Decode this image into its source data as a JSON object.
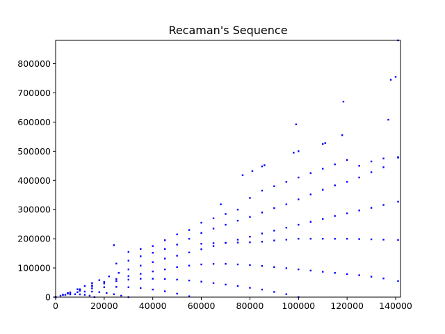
{
  "chart_data": {
    "type": "scatter",
    "title": "Recaman's Sequence",
    "xlabel": "",
    "ylabel": "",
    "xlim": [
      0,
      142000
    ],
    "ylim": [
      0,
      880000
    ],
    "xticks": [
      0,
      20000,
      40000,
      60000,
      80000,
      100000,
      120000,
      140000
    ],
    "xtick_labels": [
      "0",
      "20000",
      "40000",
      "60000",
      "80000",
      "100000",
      "120000",
      "140000"
    ],
    "yticks": [
      0,
      100000,
      200000,
      300000,
      400000,
      500000,
      600000,
      700000,
      800000
    ],
    "ytick_labels": [
      "0",
      "100000",
      "200000",
      "300000",
      "400000",
      "500000",
      "600000",
      "700000",
      "800000"
    ],
    "grid": false,
    "legend": "none",
    "marker_color": "#0000ff",
    "series": [
      {
        "description": "rising",
        "x": [
          0,
          3000,
          6000,
          9000,
          12000,
          15000,
          18000,
          22000,
          26000,
          30000,
          35000,
          40000,
          45000,
          50000,
          55000,
          60000,
          65000,
          70000,
          75000,
          80000,
          85000,
          90000,
          95000,
          100000,
          105000,
          110000,
          115000,
          120000,
          125000,
          130000,
          135000,
          141000
        ],
        "y": [
          0,
          8000,
          16000,
          27000,
          38000,
          48000,
          58000,
          71000,
          83000,
          95000,
          108000,
          120000,
          132000,
          142000,
          153000,
          164000,
          175000,
          186000,
          197000,
          207000,
          218000,
          228000,
          238000,
          248000,
          258000,
          268000,
          278000,
          287000,
          297000,
          306000,
          316000,
          327000
        ]
      },
      {
        "description": "rising-steeper",
        "x": [
          25000,
          30000,
          35000,
          40000,
          45000,
          50000,
          55000,
          60000,
          65000,
          70000,
          75000,
          80000,
          85000,
          90000,
          95000,
          100000,
          105000,
          110000,
          115000,
          120000,
          125000,
          130000,
          135000,
          141000
        ],
        "y": [
          115000,
          125000,
          140000,
          152000,
          165000,
          180000,
          200000,
          220000,
          235000,
          248000,
          262000,
          275000,
          290000,
          305000,
          318000,
          335000,
          352000,
          368000,
          383000,
          395000,
          410000,
          428000,
          445000,
          478000
        ]
      },
      {
        "description": "upper-scattered",
        "x": [
          30000,
          35000,
          40000,
          45000,
          50000,
          55000,
          60000,
          65000,
          70000,
          75000,
          80000,
          85000,
          90000,
          95000,
          100000,
          105000,
          110000,
          115000,
          120000,
          125000,
          130000,
          135000,
          141000
        ],
        "y": [
          155000,
          165000,
          175000,
          195000,
          215000,
          230000,
          255000,
          270000,
          285000,
          300000,
          340000,
          365000,
          380000,
          395000,
          410000,
          425000,
          440000,
          455000,
          470000,
          450000,
          465000,
          475000,
          480000
        ]
      },
      {
        "description": "top-outliers",
        "x": [
          24000,
          68000,
          77000,
          81000,
          85000,
          86000,
          98000,
          99000,
          100000,
          110000,
          111000,
          118000,
          118500,
          137000,
          138000,
          140000,
          141000
        ],
        "y": [
          178000,
          318000,
          418000,
          432000,
          448000,
          452000,
          495000,
          592000,
          500000,
          525000,
          528000,
          555000,
          670000,
          608000,
          745000,
          755000,
          880000
        ]
      },
      {
        "description": "flat-arc",
        "x": [
          60000,
          65000,
          70000,
          75000,
          80000,
          85000,
          90000,
          95000,
          100000,
          105000,
          110000,
          115000,
          120000,
          125000,
          130000,
          135000,
          141000
        ],
        "y": [
          183000,
          185000,
          186000,
          187000,
          188000,
          190000,
          194000,
          197000,
          200000,
          200000,
          200000,
          200000,
          200000,
          199000,
          198000,
          197000,
          196000
        ]
      },
      {
        "description": "arc-large",
        "x": [
          0,
          5000,
          10000,
          15000,
          20000,
          25000,
          30000,
          35000,
          40000,
          45000,
          50000,
          55000,
          60000,
          65000,
          70000,
          75000,
          80000,
          85000,
          90000,
          95000,
          100000,
          105000,
          110000,
          115000,
          120000,
          125000,
          130000,
          135000,
          141000
        ],
        "y": [
          0,
          14000,
          27000,
          40000,
          52000,
          62000,
          72000,
          80000,
          88000,
          95000,
          103000,
          108000,
          112000,
          114000,
          114000,
          112000,
          110000,
          107000,
          103000,
          99000,
          95000,
          91000,
          87000,
          83000,
          79000,
          75000,
          70000,
          64000,
          55000
        ]
      },
      {
        "description": "arc-medium",
        "x": [
          0,
          5000,
          10000,
          15000,
          20000,
          25000,
          30000,
          35000,
          40000,
          45000,
          50000,
          55000,
          60000,
          65000,
          70000,
          75000,
          80000,
          85000,
          90000,
          95000,
          100000
        ],
        "y": [
          0,
          13000,
          26000,
          38000,
          47000,
          55000,
          60000,
          63000,
          63000,
          62000,
          60000,
          57000,
          53000,
          48000,
          43000,
          38000,
          32000,
          26000,
          18000,
          10000,
          0
        ]
      },
      {
        "description": "arc-small",
        "x": [
          0,
          5000,
          10000,
          15000,
          20000,
          25000,
          30000,
          35000,
          40000,
          45000,
          50000,
          55000
        ],
        "y": [
          0,
          12000,
          22000,
          30000,
          34000,
          35000,
          34000,
          31000,
          26000,
          20000,
          12000,
          3000
        ]
      },
      {
        "description": "arc-tiny",
        "x": [
          0,
          3000,
          6000,
          9000,
          12000,
          15000,
          18000,
          21000,
          24000,
          27000,
          30000
        ],
        "y": [
          0,
          8000,
          13000,
          17000,
          19000,
          19000,
          17000,
          14000,
          10000,
          5000,
          0
        ]
      },
      {
        "description": "arc-micro",
        "x": [
          0,
          2000,
          4000,
          6000,
          8000,
          10000,
          12000,
          14000,
          16000
        ],
        "y": [
          0,
          5000,
          8000,
          9500,
          10000,
          9500,
          8000,
          5000,
          0
        ]
      }
    ]
  }
}
